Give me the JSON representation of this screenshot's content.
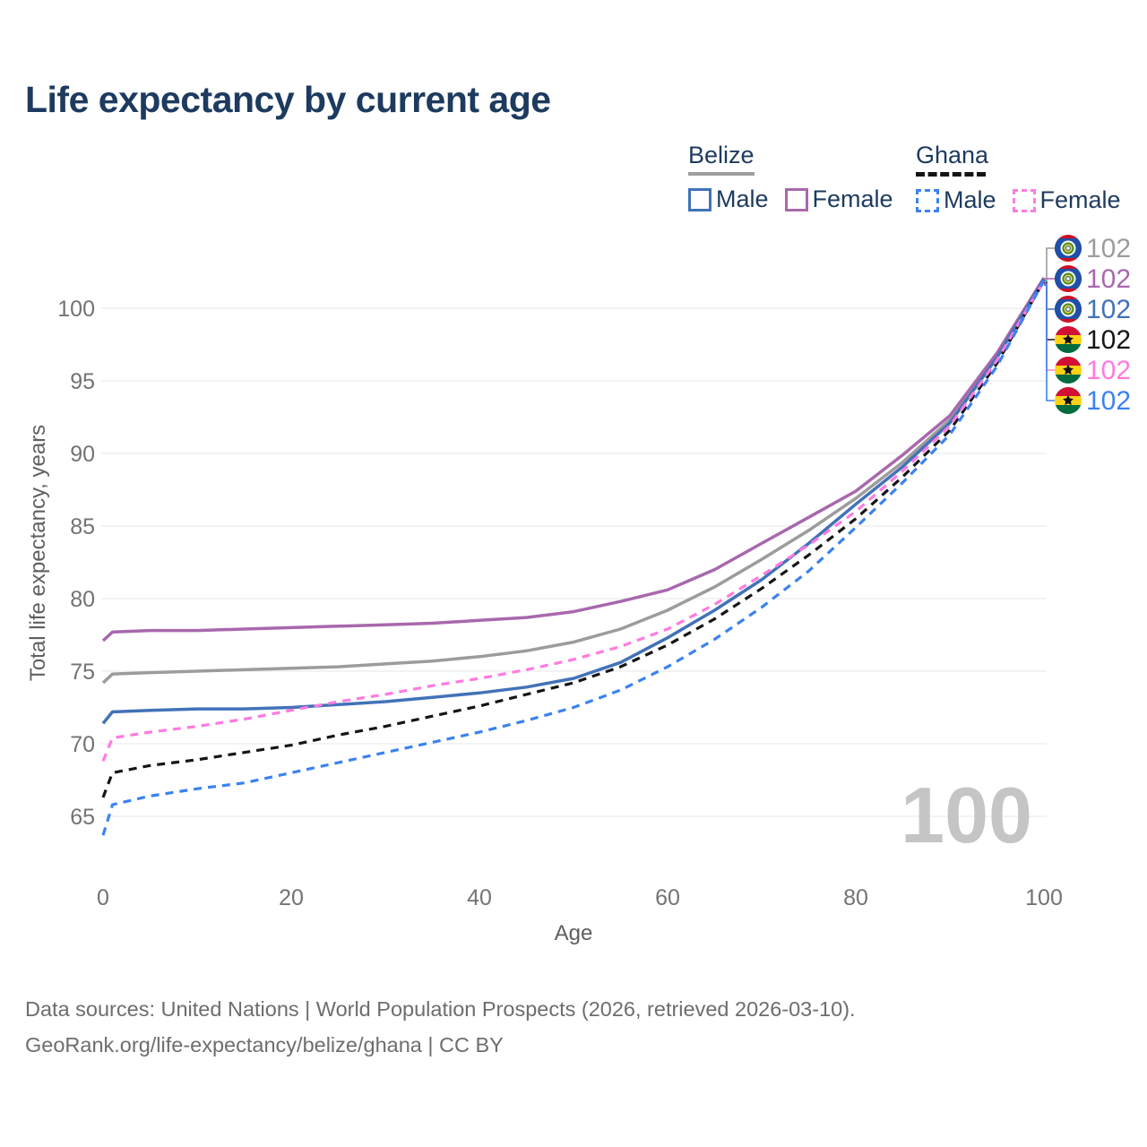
{
  "title": "Life expectancy by current age",
  "legend": {
    "groups": [
      {
        "country": "Belize",
        "line_style": "solid",
        "underline_color": "#9e9e9e",
        "items": [
          {
            "label": "Male",
            "color": "#4272b8"
          },
          {
            "label": "Female",
            "color": "#a868ad"
          }
        ]
      },
      {
        "country": "Ghana",
        "line_style": "dashed",
        "underline_color": "#151515",
        "items": [
          {
            "label": "Male",
            "color": "#3b82f0"
          },
          {
            "label": "Female",
            "color": "#ff7be0"
          }
        ]
      }
    ]
  },
  "hover_age_indicator": "100",
  "footer": {
    "line1": "Data sources: United Nations | World Population Prospects (2026, retrieved 2026-03-10).",
    "line2": "GeoRank.org/life-expectancy/belize/ghana | CC BY"
  },
  "chart_data": {
    "type": "line",
    "title": "Life expectancy by current age",
    "xlabel": "Age",
    "ylabel": "Total life expectancy, years",
    "x_ticks": [
      0,
      20,
      40,
      60,
      80,
      100
    ],
    "y_ticks": [
      65,
      70,
      75,
      80,
      85,
      90,
      95,
      100
    ],
    "xlim": [
      0,
      100
    ],
    "ylim": [
      63.5,
      102.5
    ],
    "grid": "horizontal",
    "legend_position": "top-right",
    "axis_color": "#737373",
    "gridline_color": "#e7e7e7",
    "x": [
      0,
      1,
      5,
      10,
      15,
      20,
      25,
      30,
      35,
      40,
      45,
      50,
      55,
      60,
      65,
      70,
      75,
      80,
      85,
      90,
      95,
      100
    ],
    "series": [
      {
        "name": "Belize",
        "sex": "Both",
        "flag": "belize",
        "style": "solid",
        "color": "#9c9c9c",
        "end_value_label": "102",
        "values": [
          74.2,
          74.8,
          74.9,
          75.0,
          75.1,
          75.2,
          75.3,
          75.5,
          75.7,
          76.0,
          76.4,
          77.0,
          77.9,
          79.2,
          80.8,
          82.7,
          84.7,
          86.9,
          89.4,
          92.3,
          96.7,
          102.0
        ]
      },
      {
        "name": "Belize Female",
        "sex": "Female",
        "flag": "belize",
        "style": "solid",
        "color": "#a868ad",
        "end_value_label": "102",
        "values": [
          77.1,
          77.7,
          77.8,
          77.8,
          77.9,
          78.0,
          78.1,
          78.2,
          78.3,
          78.5,
          78.7,
          79.1,
          79.8,
          80.6,
          82.0,
          83.8,
          85.6,
          87.4,
          89.9,
          92.6,
          96.9,
          102.1
        ]
      },
      {
        "name": "Belize Male",
        "sex": "Male",
        "flag": "belize",
        "style": "solid",
        "color": "#4272b8",
        "end_value_label": "102",
        "values": [
          71.4,
          72.2,
          72.3,
          72.4,
          72.4,
          72.5,
          72.7,
          72.9,
          73.2,
          73.5,
          73.9,
          74.5,
          75.6,
          77.3,
          79.2,
          81.3,
          83.8,
          86.5,
          89.1,
          92.1,
          96.6,
          102.0
        ]
      },
      {
        "name": "Ghana",
        "sex": "Both",
        "flag": "ghana",
        "style": "dashed",
        "color": "#151515",
        "end_value_label": "102",
        "values": [
          66.3,
          68.0,
          68.5,
          68.9,
          69.4,
          69.9,
          70.6,
          71.2,
          71.9,
          72.6,
          73.4,
          74.2,
          75.3,
          76.8,
          78.6,
          80.7,
          83.0,
          85.5,
          88.4,
          91.6,
          96.2,
          101.9
        ]
      },
      {
        "name": "Ghana Female",
        "sex": "Female",
        "flag": "ghana",
        "style": "dashed",
        "color": "#ff7be0",
        "end_value_label": "102",
        "values": [
          68.8,
          70.4,
          70.8,
          71.2,
          71.7,
          72.3,
          72.9,
          73.4,
          74.0,
          74.5,
          75.1,
          75.8,
          76.7,
          77.9,
          79.6,
          81.6,
          83.7,
          86.0,
          88.8,
          91.9,
          96.4,
          101.9
        ]
      },
      {
        "name": "Ghana Male",
        "sex": "Male",
        "flag": "ghana",
        "style": "dashed",
        "color": "#3b82f0",
        "end_value_label": "102",
        "values": [
          63.7,
          65.8,
          66.4,
          66.9,
          67.3,
          68.0,
          68.7,
          69.4,
          70.1,
          70.8,
          71.6,
          72.5,
          73.7,
          75.3,
          77.2,
          79.4,
          81.9,
          84.9,
          88.0,
          91.3,
          96.0,
          101.9
        ]
      }
    ]
  }
}
